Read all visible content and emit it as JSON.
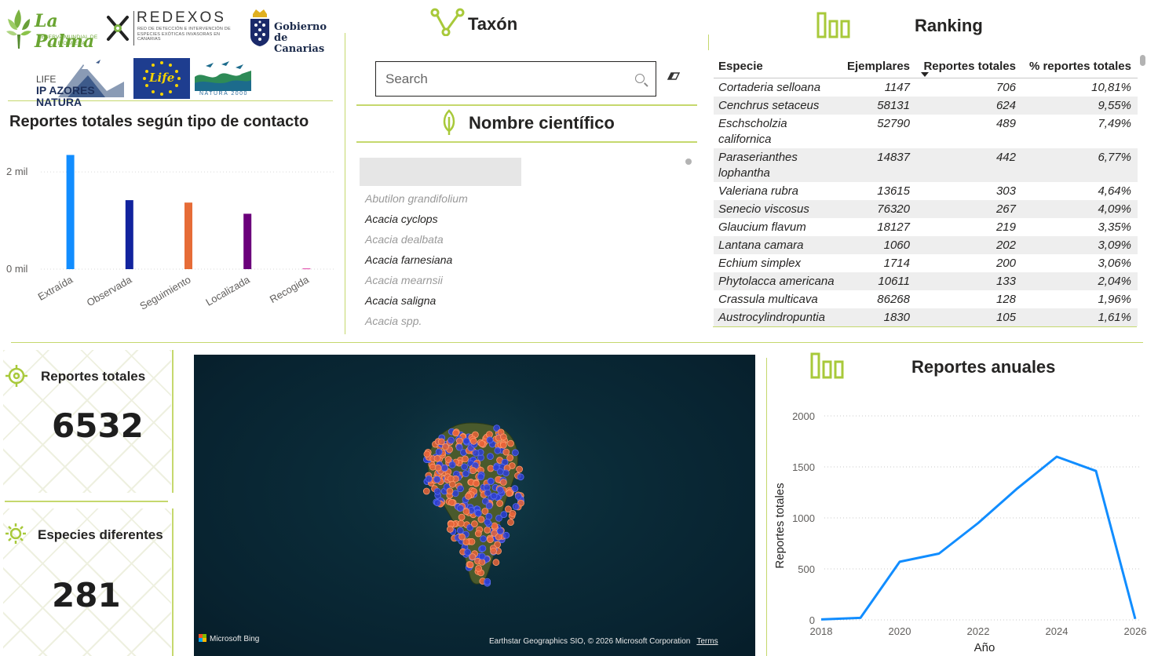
{
  "logos": {
    "lapalma": {
      "title": "La Palma",
      "subtitle": "RESERVA MUNDIAL DE LA BIOSFERA"
    },
    "redexos": {
      "title": "REDEXOS",
      "subtitle": "RED DE DETECCIÓN E INTERVENCIÓN DE ESPECIES EXÓTICAS INVASORAS EN CANARIAS"
    },
    "gobierno": {
      "line1": "Gobierno",
      "line2": "de Canarias"
    },
    "life": {
      "line1": "LIFE",
      "line2": "IP AZORES NATURA"
    },
    "eu": {
      "text": "Life"
    },
    "natura": {
      "text": "NATURA 2000"
    }
  },
  "colors": {
    "accent_green": "#c5d86d",
    "icon_green": "#a8c93a",
    "line_blue": "#118dff"
  },
  "contact_chart": {
    "title": "Reportes totales según tipo de contacto",
    "chart_data": {
      "type": "bar",
      "categories": [
        "Extraída",
        "Observada",
        "Seguimiento",
        "Localizada",
        "Recogida"
      ],
      "values": [
        2350,
        1420,
        1370,
        1140,
        15
      ],
      "colors": [
        "#118dff",
        "#12239e",
        "#e66c37",
        "#6b007b",
        "#e044a7"
      ],
      "yticks": [
        "0 mil",
        "2 mil"
      ],
      "ylim": [
        0,
        2600
      ],
      "grid": true
    }
  },
  "taxon": {
    "title": "Taxón",
    "search_placeholder": "Search",
    "icon": "taxonomy-tree-icon"
  },
  "nombre_cientifico": {
    "title": "Nombre científico",
    "icon": "leaf-icon",
    "items": [
      {
        "label": "Abutilon grandifolium",
        "dim": true
      },
      {
        "label": "Acacia cyclops",
        "dim": false
      },
      {
        "label": "Acacia dealbata",
        "dim": true
      },
      {
        "label": "Acacia farnesiana",
        "dim": false
      },
      {
        "label": "Acacia mearnsii",
        "dim": true
      },
      {
        "label": "Acacia saligna",
        "dim": false
      },
      {
        "label": "Acacia spp.",
        "dim": true
      }
    ]
  },
  "ranking": {
    "title": "Ranking",
    "icon": "bar-chart-icon",
    "columns": [
      "Especie",
      "Ejemplares",
      "Reportes totales",
      "% reportes totales"
    ],
    "rows": [
      [
        "Cortaderia selloana",
        "1147",
        "706",
        "10,81%"
      ],
      [
        "Cenchrus setaceus",
        "58131",
        "624",
        "9,55%"
      ],
      [
        "Eschscholzia californica",
        "52790",
        "489",
        "7,49%"
      ],
      [
        "Paraserianthes lophantha",
        "14837",
        "442",
        "6,77%"
      ],
      [
        "Valeriana rubra",
        "13615",
        "303",
        "4,64%"
      ],
      [
        "Senecio viscosus",
        "76320",
        "267",
        "4,09%"
      ],
      [
        "Glaucium flavum",
        "18127",
        "219",
        "3,35%"
      ],
      [
        "Lantana camara",
        "1060",
        "202",
        "3,09%"
      ],
      [
        "Echium simplex",
        "1714",
        "200",
        "3,06%"
      ],
      [
        "Phytolacca americana",
        "10611",
        "133",
        "2,04%"
      ],
      [
        "Crassula multicava",
        "86268",
        "128",
        "1,96%"
      ],
      [
        "Austrocylindropuntia",
        "1830",
        "105",
        "1,61%"
      ]
    ]
  },
  "kpi": {
    "reportes": {
      "label": "Reportes totales",
      "value": "6532",
      "icon": "target-icon"
    },
    "especies": {
      "label": "Especies diferentes",
      "value": "281",
      "icon": "sun-icon"
    }
  },
  "map": {
    "bing": "Microsoft Bing",
    "credit": "Earthstar Geographics SIO, © 2026 Microsoft Corporation",
    "terms": "Terms"
  },
  "annual_chart": {
    "title": "Reportes anuales",
    "icon": "bar-chart-icon",
    "chart_data": {
      "type": "line",
      "x": [
        2018,
        2019,
        2020,
        2021,
        2022,
        2023,
        2024,
        2025,
        2026
      ],
      "series": [
        {
          "values": [
            5,
            20,
            570,
            650,
            950,
            1290,
            1600,
            1460,
            10
          ]
        }
      ],
      "xticks": [
        "2018",
        "2020",
        "2022",
        "2024",
        "2026"
      ],
      "yticks": [
        "0",
        "500",
        "1000",
        "1500",
        "2000"
      ],
      "xlabel": "Año",
      "ylabel": "Reportes totales",
      "xlim": [
        2018,
        2026
      ],
      "ylim": [
        0,
        2000
      ],
      "grid": true
    }
  }
}
